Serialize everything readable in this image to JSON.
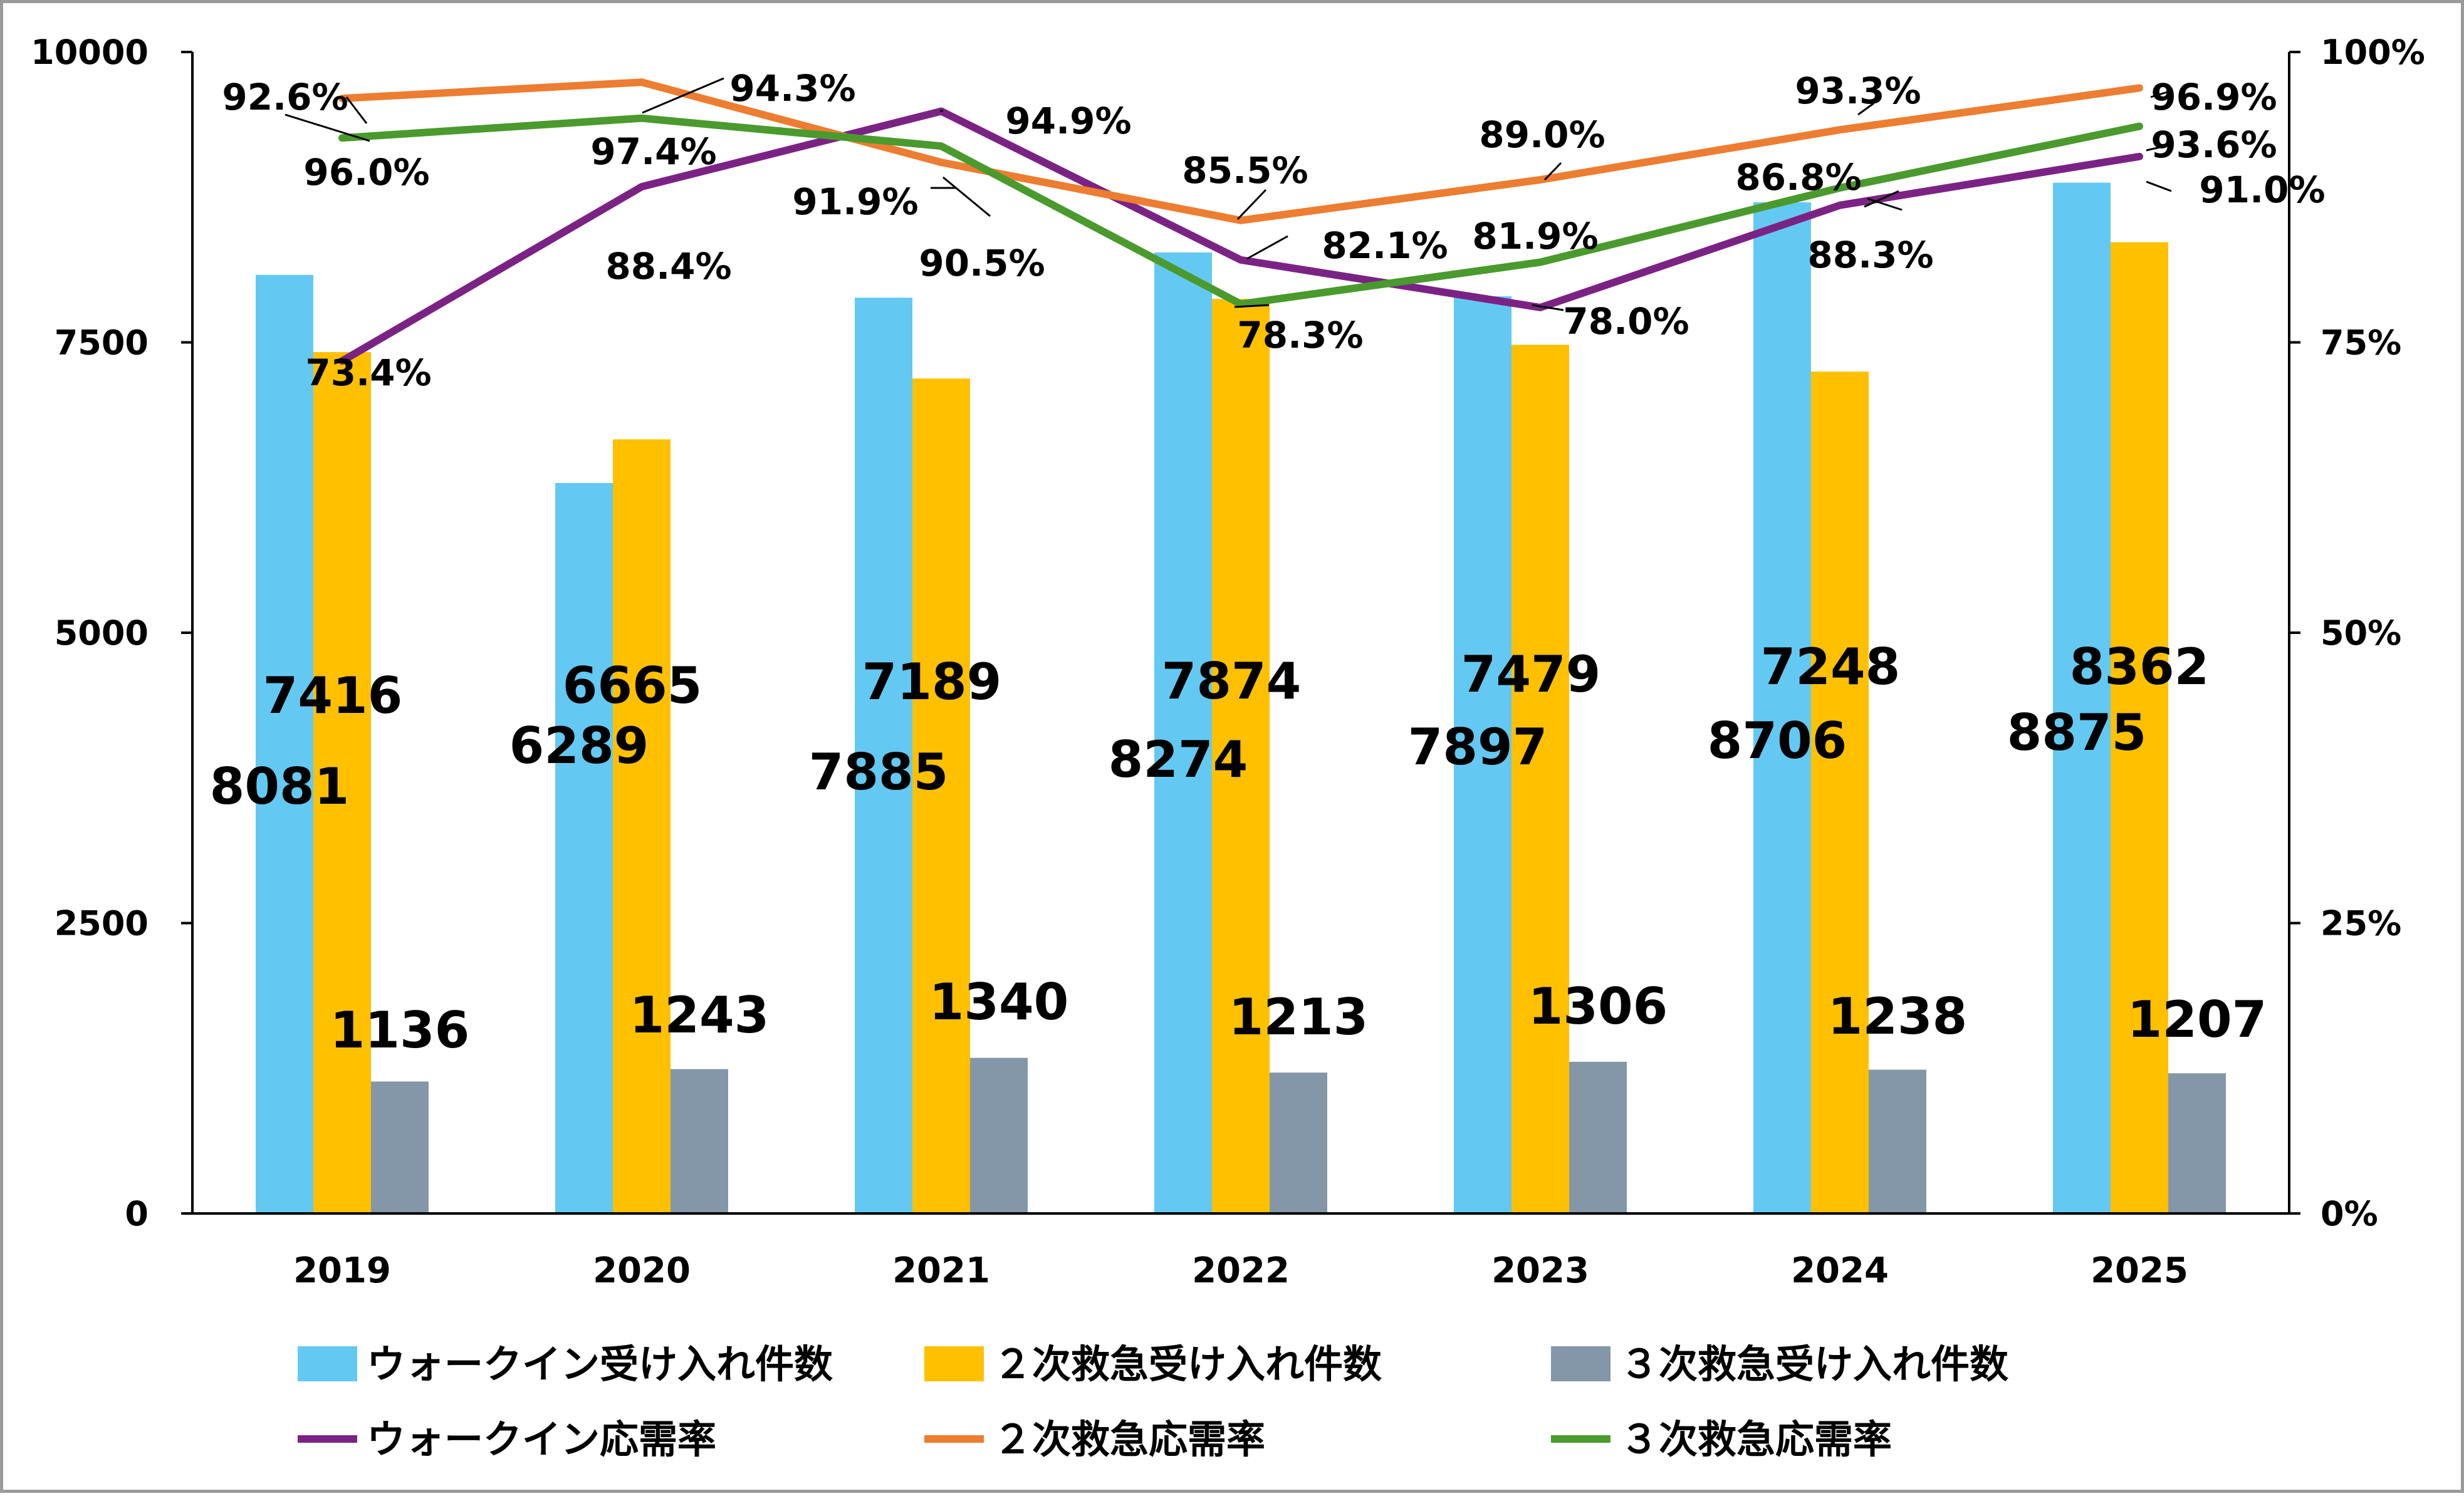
{
  "chart_data": {
    "type": "bar",
    "categories": [
      "2019",
      "2020",
      "2021",
      "2022",
      "2023",
      "2024",
      "2025"
    ],
    "ylim": [
      0,
      10000
    ],
    "yticks": [
      "0",
      "2500",
      "5000",
      "7500",
      "10000"
    ],
    "y2lim": [
      0,
      100
    ],
    "y2ticks": [
      "0%",
      "25%",
      "50%",
      "75%",
      "100%"
    ],
    "grid": false,
    "legend_position": "bottom",
    "bar_series": [
      {
        "name": "ウォークイン受け入れ件数",
        "color": "#63C9F2",
        "values": [
          8081,
          6289,
          7885,
          8274,
          7897,
          8706,
          8875
        ]
      },
      {
        "name": "２次救急受け入れ件数",
        "color": "#FFC000",
        "values": [
          7416,
          6665,
          7189,
          7874,
          7479,
          7248,
          8362
        ]
      },
      {
        "name": "３次救急受け入れ件数",
        "color": "#8497A9",
        "values": [
          1136,
          1243,
          1340,
          1213,
          1306,
          1238,
          1207
        ]
      }
    ],
    "line_series": [
      {
        "name": "ウォークイン応需率",
        "color": "#7B2384",
        "axis": "right",
        "values": [
          73.4,
          88.4,
          94.9,
          82.1,
          78.0,
          86.8,
          91.0
        ],
        "labels": [
          "73.4%",
          "88.4%",
          "94.9%",
          "82.1%",
          "78.0%",
          "86.8%",
          "91.0%"
        ]
      },
      {
        "name": "２次救急応需率",
        "color": "#ED7D31",
        "axis": "right",
        "values": [
          96.0,
          97.4,
          90.5,
          85.5,
          89.0,
          93.3,
          96.9
        ],
        "labels": [
          "96.0%",
          "97.4%",
          "90.5%",
          "85.5%",
          "89.0%",
          "93.3%",
          "96.9%"
        ]
      },
      {
        "name": "３次救急応需率",
        "color": "#4A9A2E",
        "axis": "right",
        "values": [
          92.6,
          94.3,
          91.9,
          78.3,
          81.9,
          88.3,
          93.6
        ],
        "labels": [
          "92.6%",
          "94.3%",
          "91.9%",
          "78.3%",
          "81.9%",
          "88.3%",
          "93.6%"
        ]
      }
    ]
  }
}
